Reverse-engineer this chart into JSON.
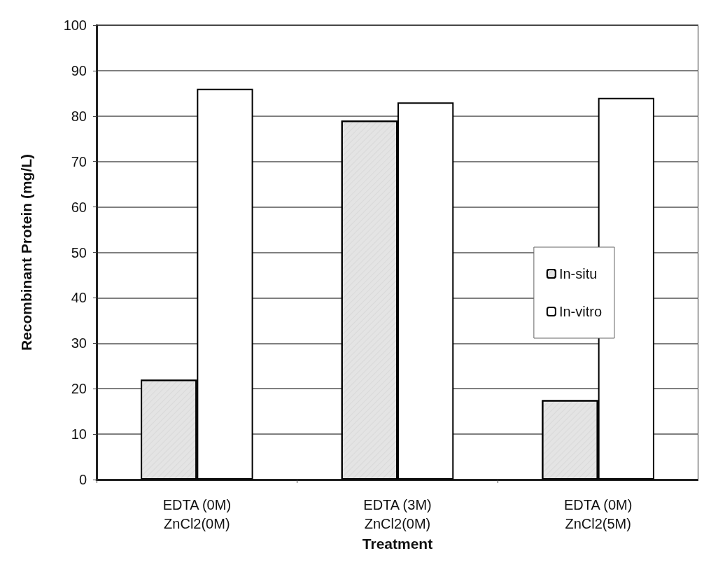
{
  "chart_data": {
    "type": "bar",
    "xlabel": "Treatment",
    "ylabel": "Recombinant Protein (mg/L)",
    "categories": [
      "EDTA (0M)\nZnCl2(0M)",
      "EDTA (3M)\nZnCl2(0M)",
      "EDTA (0M)\nZnCl2(5M)"
    ],
    "series": [
      {
        "name": "In-situ",
        "color": "#e4e4e4",
        "values": [
          22,
          79,
          17.5
        ]
      },
      {
        "name": "In-vitro",
        "color": "#ffffff",
        "values": [
          86,
          83,
          84
        ]
      }
    ],
    "ylim": [
      0,
      100
    ],
    "yticks": [
      0,
      10,
      20,
      30,
      40,
      50,
      60,
      70,
      80,
      90,
      100
    ],
    "grid": "y",
    "legend": "right"
  }
}
